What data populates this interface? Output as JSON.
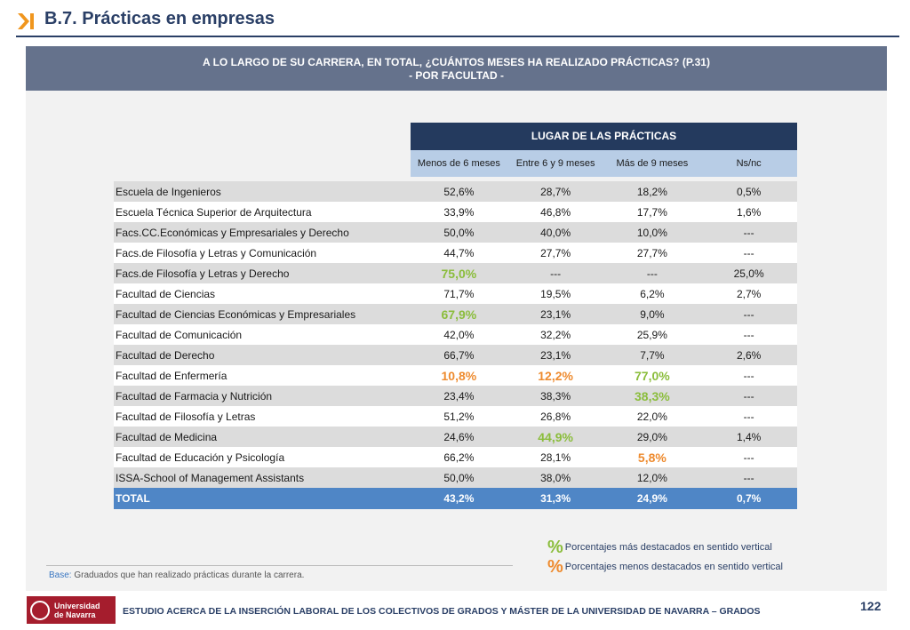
{
  "header": {
    "title": "B.7. Prácticas en empresas",
    "arrow_color": "#f0961e"
  },
  "banner": {
    "line1": "A LO LARGO DE SU CARRERA, EN TOTAL, ¿CUÁNTOS MESES HA REALIZADO PRÁCTICAS? (P.31)",
    "line2": "- POR FACULTAD -"
  },
  "table": {
    "group_header": "LUGAR DE LAS  PRÁCTICAS",
    "columns": [
      "Menos de 6 meses",
      "Entre 6 y 9 meses",
      "Más de 9 meses",
      "Ns/nc"
    ],
    "rows": [
      {
        "faculty": "Escuela de Ingenieros",
        "values": [
          "52,6%",
          "28,7%",
          "18,2%",
          "0,5%"
        ],
        "hl": [
          "",
          "",
          "",
          ""
        ]
      },
      {
        "faculty": "Escuela Técnica Superior de Arquitectura",
        "values": [
          "33,9%",
          "46,8%",
          "17,7%",
          "1,6%"
        ],
        "hl": [
          "",
          "",
          "",
          ""
        ]
      },
      {
        "faculty": "Facs.CC.Económicas y Empresariales y Derecho",
        "values": [
          "50,0%",
          "40,0%",
          "10,0%",
          "---"
        ],
        "hl": [
          "",
          "",
          "",
          ""
        ]
      },
      {
        "faculty": "Facs.de Filosofía y Letras y Comunicación",
        "values": [
          "44,7%",
          "27,7%",
          "27,7%",
          "---"
        ],
        "hl": [
          "",
          "",
          "",
          ""
        ]
      },
      {
        "faculty": "Facs.de Filosofía y Letras y Derecho",
        "values": [
          "75,0%",
          "---",
          "---",
          "25,0%"
        ],
        "hl": [
          "g",
          "",
          "",
          ""
        ]
      },
      {
        "faculty": "Facultad de Ciencias",
        "values": [
          "71,7%",
          "19,5%",
          "6,2%",
          "2,7%"
        ],
        "hl": [
          "",
          "",
          "",
          ""
        ]
      },
      {
        "faculty": "Facultad de Ciencias Económicas y Empresariales",
        "values": [
          "67,9%",
          "23,1%",
          "9,0%",
          "---"
        ],
        "hl": [
          "g",
          "",
          "",
          ""
        ]
      },
      {
        "faculty": "Facultad de Comunicación",
        "values": [
          "42,0%",
          "32,2%",
          "25,9%",
          "---"
        ],
        "hl": [
          "",
          "",
          "",
          ""
        ]
      },
      {
        "faculty": "Facultad de Derecho",
        "values": [
          "66,7%",
          "23,1%",
          "7,7%",
          "2,6%"
        ],
        "hl": [
          "",
          "",
          "",
          ""
        ]
      },
      {
        "faculty": "Facultad de Enfermería",
        "values": [
          "10,8%",
          "12,2%",
          "77,0%",
          "---"
        ],
        "hl": [
          "o",
          "o",
          "g",
          ""
        ]
      },
      {
        "faculty": "Facultad de Farmacia y Nutrición",
        "values": [
          "23,4%",
          "38,3%",
          "38,3%",
          "---"
        ],
        "hl": [
          "",
          "",
          "g",
          ""
        ]
      },
      {
        "faculty": "Facultad de Filosofía y Letras",
        "values": [
          "51,2%",
          "26,8%",
          "22,0%",
          "---"
        ],
        "hl": [
          "",
          "",
          "",
          ""
        ]
      },
      {
        "faculty": "Facultad de Medicina",
        "values": [
          "24,6%",
          "44,9%",
          "29,0%",
          "1,4%"
        ],
        "hl": [
          "",
          "g",
          "",
          ""
        ]
      },
      {
        "faculty": "Facultad de Educación y Psicología",
        "values": [
          "66,2%",
          "28,1%",
          "5,8%",
          "---"
        ],
        "hl": [
          "",
          "",
          "o",
          ""
        ]
      },
      {
        "faculty": "ISSA-School of Management Assistants",
        "values": [
          "50,0%",
          "38,0%",
          "12,0%",
          "---"
        ],
        "hl": [
          "",
          "",
          "",
          ""
        ]
      }
    ],
    "total": {
      "faculty": "TOTAL",
      "values": [
        "43,2%",
        "31,3%",
        "24,9%",
        "0,7%"
      ]
    }
  },
  "legend": {
    "symbol": "%",
    "high": "Porcentajes más destacados en sentido vertical",
    "low": "Porcentajes menos destacados en sentido vertical",
    "high_color": "#8bbd3c",
    "low_color": "#ee8b2f"
  },
  "base": {
    "label": "Base:",
    "text": "Graduados que han realizado prácticas durante la carrera."
  },
  "footer": {
    "logo_line1": "Universidad",
    "logo_line2": "de Navarra",
    "text": "ESTUDIO ACERCA DE LA INSERCIÓN LABORAL DE LOS COLECTIVOS DE GRADOS Y MÁSTER DE LA UNIVERSIDAD DE NAVARRA – GRADOS",
    "page_number": "122"
  }
}
